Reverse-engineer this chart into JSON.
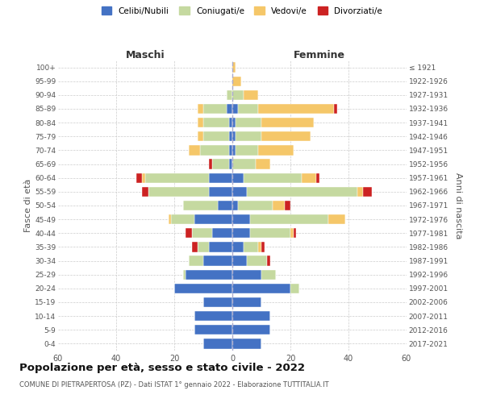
{
  "age_groups": [
    "0-4",
    "5-9",
    "10-14",
    "15-19",
    "20-24",
    "25-29",
    "30-34",
    "35-39",
    "40-44",
    "45-49",
    "50-54",
    "55-59",
    "60-64",
    "65-69",
    "70-74",
    "75-79",
    "80-84",
    "85-89",
    "90-94",
    "95-99",
    "100+"
  ],
  "birth_years": [
    "2017-2021",
    "2012-2016",
    "2007-2011",
    "2002-2006",
    "1997-2001",
    "1992-1996",
    "1987-1991",
    "1982-1986",
    "1977-1981",
    "1972-1976",
    "1967-1971",
    "1962-1966",
    "1957-1961",
    "1952-1956",
    "1947-1951",
    "1942-1946",
    "1937-1941",
    "1932-1936",
    "1927-1931",
    "1922-1926",
    "≤ 1921"
  ],
  "maschi": {
    "celibi": [
      10,
      13,
      13,
      10,
      20,
      16,
      10,
      8,
      7,
      13,
      5,
      8,
      8,
      1,
      1,
      1,
      1,
      2,
      0,
      0,
      0
    ],
    "coniugati": [
      0,
      0,
      0,
      0,
      0,
      1,
      5,
      4,
      7,
      8,
      12,
      21,
      22,
      6,
      10,
      9,
      9,
      8,
      2,
      0,
      0
    ],
    "vedovi": [
      0,
      0,
      0,
      0,
      0,
      0,
      0,
      0,
      0,
      1,
      0,
      0,
      1,
      0,
      4,
      2,
      2,
      2,
      0,
      0,
      0
    ],
    "divorziati": [
      0,
      0,
      0,
      0,
      0,
      0,
      0,
      2,
      2,
      0,
      0,
      2,
      2,
      1,
      0,
      0,
      0,
      0,
      0,
      0,
      0
    ]
  },
  "femmine": {
    "nubili": [
      10,
      13,
      13,
      10,
      20,
      10,
      5,
      4,
      6,
      6,
      2,
      5,
      4,
      0,
      1,
      1,
      1,
      2,
      0,
      0,
      0
    ],
    "coniugate": [
      0,
      0,
      0,
      0,
      3,
      5,
      7,
      5,
      14,
      27,
      12,
      38,
      20,
      8,
      8,
      9,
      9,
      7,
      4,
      0,
      0
    ],
    "vedove": [
      0,
      0,
      0,
      0,
      0,
      0,
      0,
      1,
      1,
      6,
      4,
      2,
      5,
      5,
      12,
      17,
      18,
      26,
      5,
      3,
      1
    ],
    "divorziate": [
      0,
      0,
      0,
      0,
      0,
      0,
      1,
      1,
      1,
      0,
      2,
      3,
      1,
      0,
      0,
      0,
      0,
      1,
      0,
      0,
      0
    ]
  },
  "colors": {
    "celibi": "#4472c4",
    "coniugati": "#c5d9a0",
    "vedovi": "#f5c769",
    "divorziati": "#cc2222"
  },
  "xlim": 60,
  "title": "Popolazione per età, sesso e stato civile - 2022",
  "subtitle": "COMUNE DI PIETRAPERTOSA (PZ) - Dati ISTAT 1° gennaio 2022 - Elaborazione TUTTITALIA.IT",
  "ylabel_left": "Fasce di età",
  "ylabel_right": "Anni di nascita",
  "xlabel_maschi": "Maschi",
  "xlabel_femmine": "Femmine",
  "legend_labels": [
    "Celibi/Nubili",
    "Coniugati/e",
    "Vedovi/e",
    "Divorziati/e"
  ],
  "bg_color": "#ffffff",
  "grid_color": "#cccccc"
}
